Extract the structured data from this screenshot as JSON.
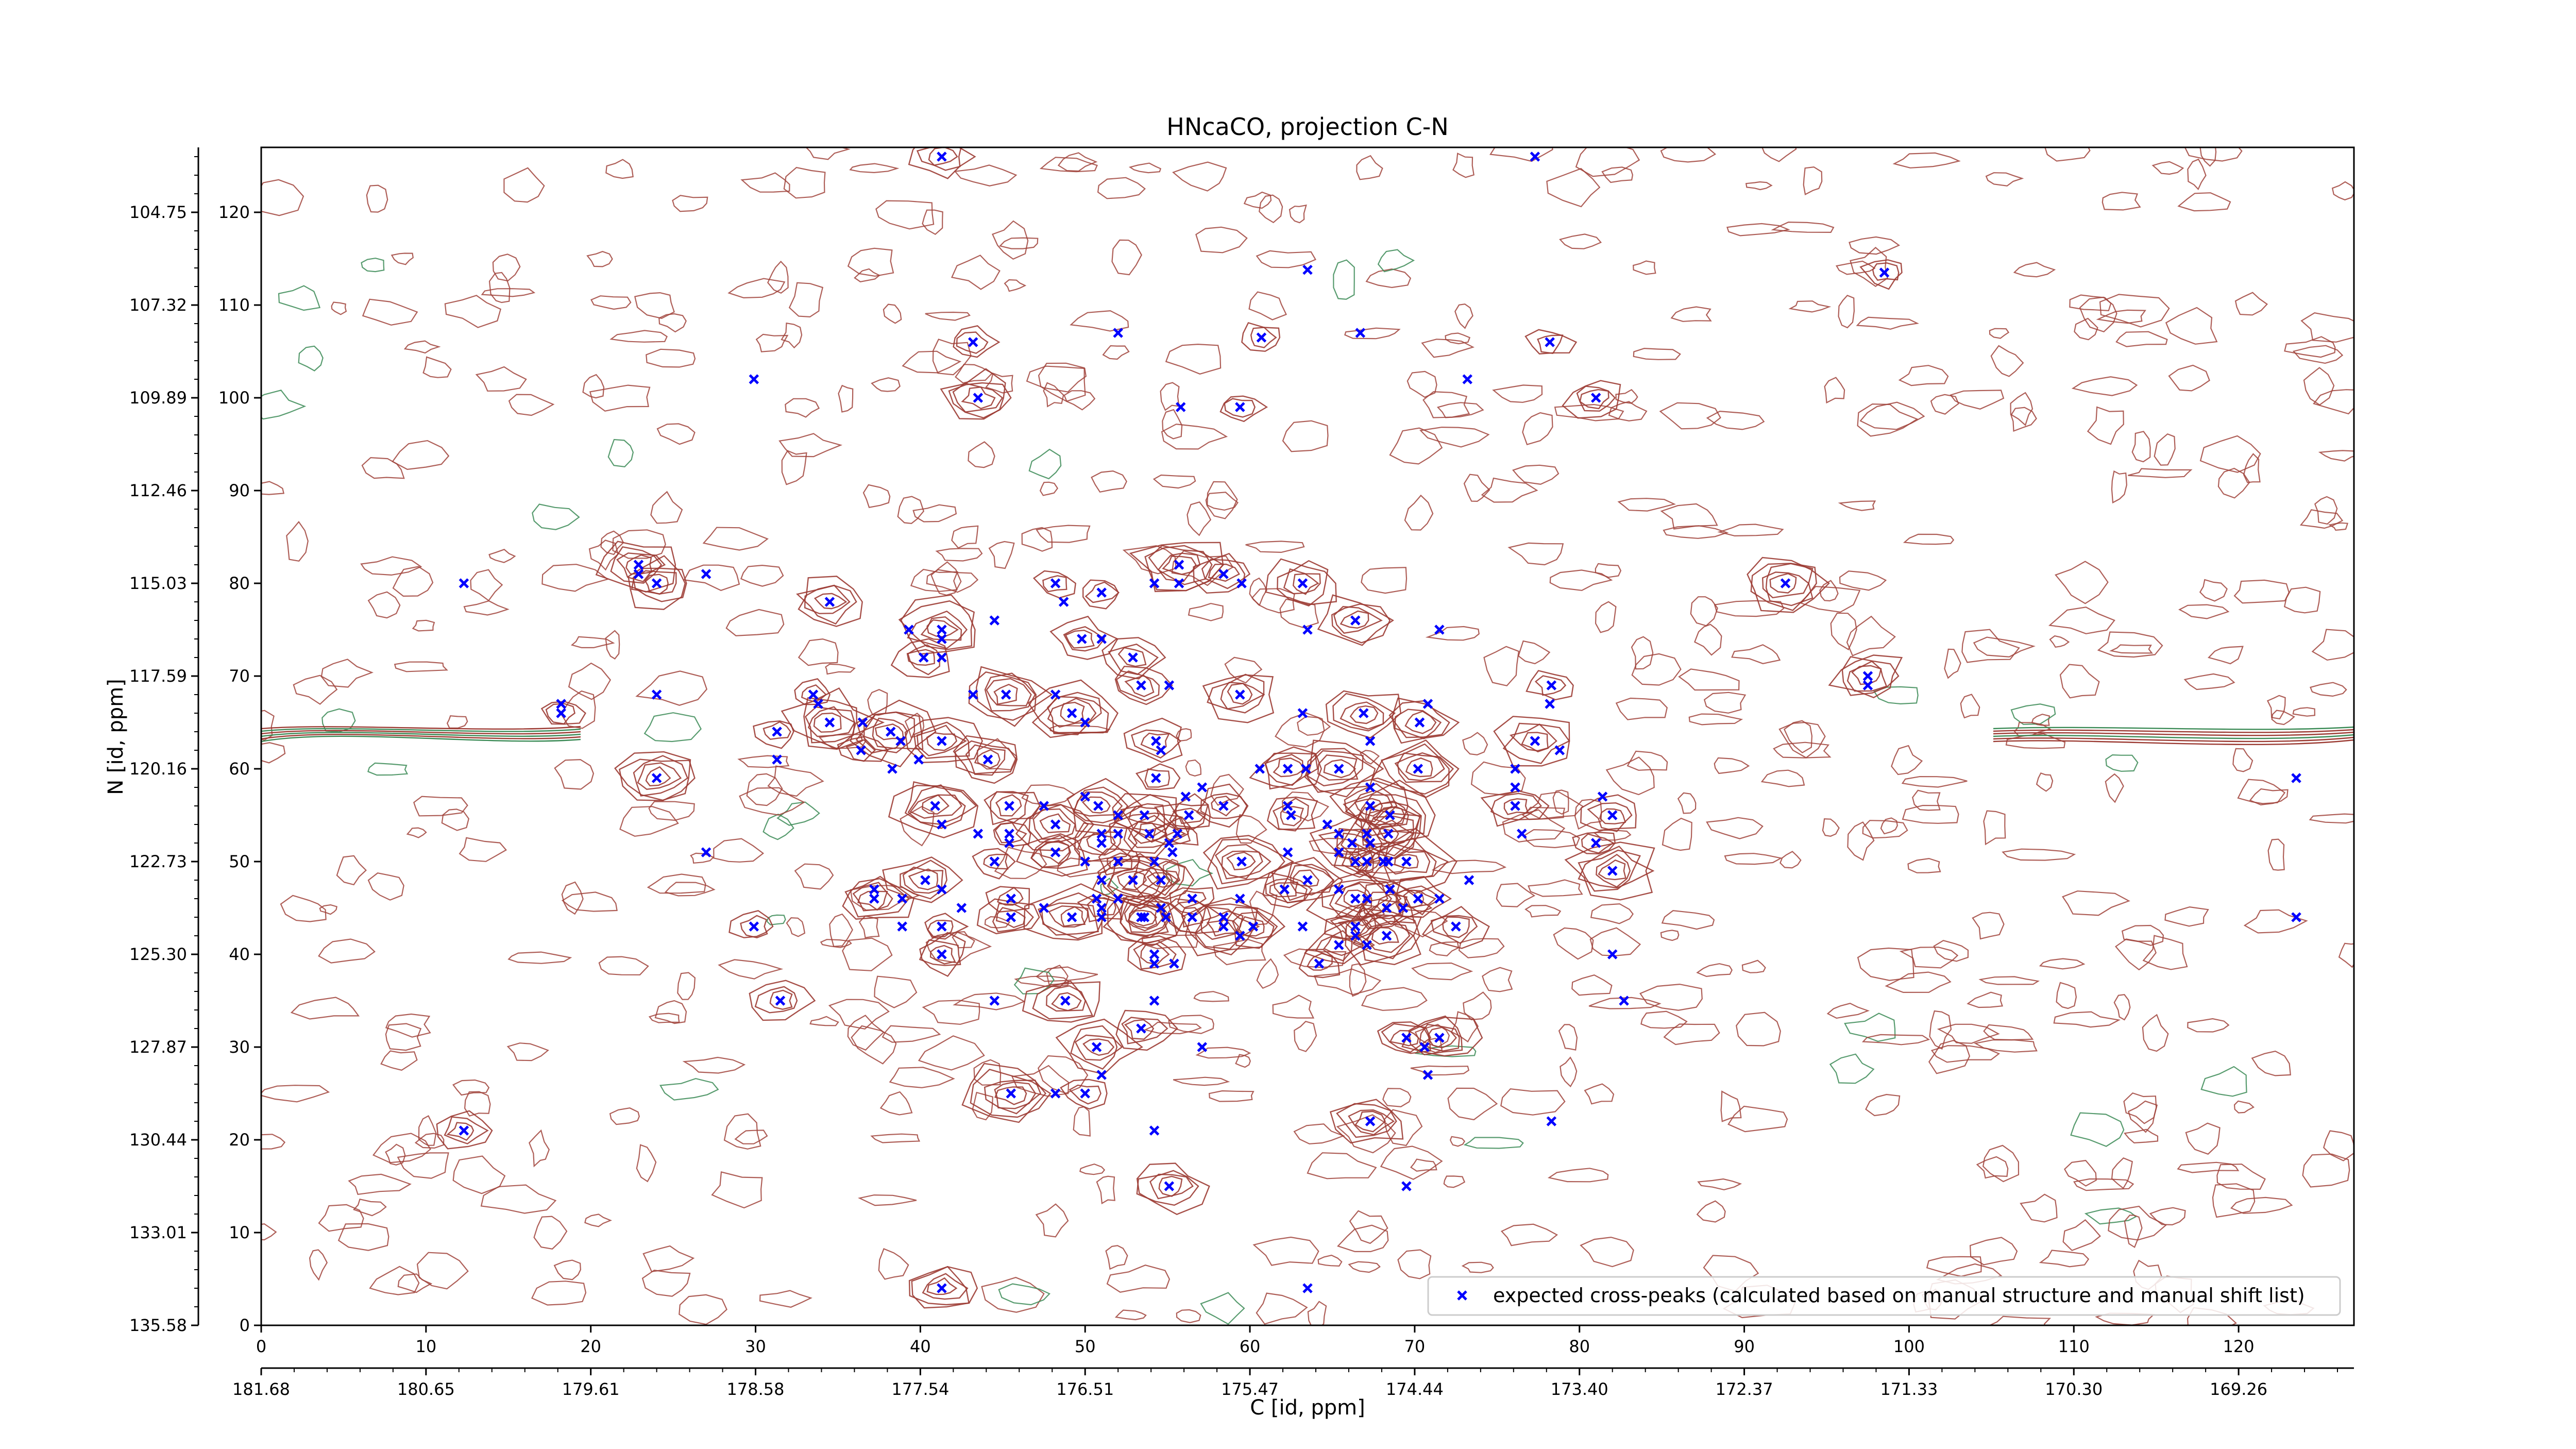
{
  "chart_data": {
    "type": "scatter",
    "title": "HNcaCO, projection C-N",
    "xlabel": "C [id, ppm]",
    "ylabel": "N [id, ppm]",
    "xlim": [
      0,
      127
    ],
    "ylim": [
      0,
      127
    ],
    "grid": false,
    "legend_position": "bottom-right",
    "x_index_ticks": [
      "0",
      "10",
      "20",
      "30",
      "40",
      "50",
      "60",
      "70",
      "80",
      "90",
      "100",
      "110",
      "120"
    ],
    "x_ppm_ticks": [
      "181.68",
      "180.65",
      "179.61",
      "178.58",
      "177.54",
      "176.51",
      "175.47",
      "174.44",
      "173.40",
      "172.37",
      "171.33",
      "170.30",
      "169.26"
    ],
    "y_index_ticks": [
      "0",
      "10",
      "20",
      "30",
      "40",
      "50",
      "60",
      "70",
      "80",
      "90",
      "100",
      "110",
      "120"
    ],
    "y_ppm_ticks": [
      "135.58",
      "133.01",
      "130.44",
      "127.87",
      "125.30",
      "122.73",
      "120.16",
      "117.59",
      "115.03",
      "112.46",
      "109.89",
      "107.32",
      "104.75"
    ],
    "series": [
      {
        "name": "expected cross-peaks (calculated based on manual structure and manual shift list)",
        "color": "#0000ff",
        "marker": "x",
        "points": [
          [
            41.3,
            126.0
          ],
          [
            77.3,
            126.0
          ],
          [
            98.5,
            113.5
          ],
          [
            63.5,
            113.8
          ],
          [
            43.2,
            106.0
          ],
          [
            52.0,
            107.0
          ],
          [
            60.7,
            106.5
          ],
          [
            66.7,
            107.0
          ],
          [
            78.2,
            106.0
          ],
          [
            29.9,
            102.0
          ],
          [
            43.5,
            100.0
          ],
          [
            55.8,
            99.0
          ],
          [
            59.4,
            99.0
          ],
          [
            73.2,
            102.0
          ],
          [
            81.0,
            100.0
          ],
          [
            12.3,
            80.0
          ],
          [
            22.9,
            82.0
          ],
          [
            22.9,
            81.0
          ],
          [
            24.0,
            80.0
          ],
          [
            27.0,
            81.0
          ],
          [
            34.5,
            78.0
          ],
          [
            44.5,
            76.0
          ],
          [
            48.2,
            80.0
          ],
          [
            48.7,
            78.0
          ],
          [
            51.0,
            79.0
          ],
          [
            54.2,
            80.0
          ],
          [
            55.7,
            82.0
          ],
          [
            55.7,
            80.0
          ],
          [
            58.4,
            81.0
          ],
          [
            59.5,
            80.0
          ],
          [
            63.2,
            80.0
          ],
          [
            63.5,
            75.0
          ],
          [
            66.4,
            76.0
          ],
          [
            71.5,
            75.0
          ],
          [
            92.5,
            80.0
          ],
          [
            39.3,
            75.0
          ],
          [
            41.3,
            75.0
          ],
          [
            41.3,
            74.0
          ],
          [
            40.2,
            72.0
          ],
          [
            41.3,
            72.0
          ],
          [
            49.8,
            74.0
          ],
          [
            51.0,
            74.0
          ],
          [
            52.9,
            72.0
          ],
          [
            18.2,
            67.0
          ],
          [
            18.2,
            66.0
          ],
          [
            24.0,
            68.0
          ],
          [
            33.5,
            68.0
          ],
          [
            33.8,
            67.0
          ],
          [
            34.5,
            65.0
          ],
          [
            36.5,
            65.0
          ],
          [
            31.3,
            64.0
          ],
          [
            31.3,
            61.0
          ],
          [
            38.2,
            64.0
          ],
          [
            38.8,
            63.0
          ],
          [
            41.3,
            63.0
          ],
          [
            43.2,
            68.0
          ],
          [
            45.2,
            68.0
          ],
          [
            48.2,
            68.0
          ],
          [
            49.2,
            66.0
          ],
          [
            50.0,
            65.0
          ],
          [
            53.4,
            69.0
          ],
          [
            55.1,
            69.0
          ],
          [
            59.4,
            68.0
          ],
          [
            63.2,
            66.0
          ],
          [
            66.9,
            66.0
          ],
          [
            67.3,
            63.0
          ],
          [
            70.3,
            65.0
          ],
          [
            70.8,
            67.0
          ],
          [
            78.3,
            69.0
          ],
          [
            78.2,
            67.0
          ],
          [
            77.3,
            63.0
          ],
          [
            78.8,
            62.0
          ],
          [
            97.5,
            70.0
          ],
          [
            97.5,
            69.0
          ],
          [
            36.4,
            62.0
          ],
          [
            38.3,
            60.0
          ],
          [
            44.1,
            61.0
          ],
          [
            39.9,
            61.0
          ],
          [
            54.3,
            59.0
          ],
          [
            54.6,
            62.0
          ],
          [
            54.3,
            63.0
          ],
          [
            60.6,
            60.0
          ],
          [
            62.3,
            60.0
          ],
          [
            63.4,
            60.0
          ],
          [
            65.4,
            60.0
          ],
          [
            67.3,
            58.0
          ],
          [
            70.2,
            60.0
          ],
          [
            76.1,
            60.0
          ],
          [
            24.0,
            59.0
          ],
          [
            123.5,
            59.0
          ],
          [
            40.9,
            56.0
          ],
          [
            41.3,
            54.0
          ],
          [
            45.4,
            56.0
          ],
          [
            47.5,
            56.0
          ],
          [
            48.2,
            54.0
          ],
          [
            50.0,
            57.0
          ],
          [
            50.8,
            56.0
          ],
          [
            52.0,
            55.0
          ],
          [
            53.6,
            55.0
          ],
          [
            56.1,
            57.0
          ],
          [
            56.3,
            55.0
          ],
          [
            57.1,
            58.0
          ],
          [
            58.4,
            56.0
          ],
          [
            62.3,
            56.0
          ],
          [
            62.5,
            55.0
          ],
          [
            64.7,
            54.0
          ],
          [
            67.3,
            56.0
          ],
          [
            67.1,
            53.0
          ],
          [
            68.5,
            55.0
          ],
          [
            76.1,
            58.0
          ],
          [
            76.1,
            56.0
          ],
          [
            81.4,
            57.0
          ],
          [
            82.0,
            55.0
          ],
          [
            43.5,
            53.0
          ],
          [
            45.4,
            53.0
          ],
          [
            45.4,
            52.0
          ],
          [
            48.2,
            51.0
          ],
          [
            51.0,
            53.0
          ],
          [
            51.0,
            52.0
          ],
          [
            52.0,
            53.0
          ],
          [
            53.9,
            53.0
          ],
          [
            55.1,
            52.0
          ],
          [
            55.6,
            53.0
          ],
          [
            65.4,
            53.0
          ],
          [
            66.2,
            52.0
          ],
          [
            67.3,
            52.0
          ],
          [
            67.1,
            50.0
          ],
          [
            68.1,
            50.0
          ],
          [
            68.4,
            53.0
          ],
          [
            76.5,
            53.0
          ],
          [
            81.0,
            52.0
          ],
          [
            27.0,
            51.0
          ],
          [
            40.3,
            48.0
          ],
          [
            41.3,
            47.0
          ],
          [
            44.5,
            50.0
          ],
          [
            50.0,
            50.0
          ],
          [
            52.0,
            50.0
          ],
          [
            51.0,
            48.0
          ],
          [
            52.9,
            48.0
          ],
          [
            54.2,
            50.0
          ],
          [
            54.6,
            48.0
          ],
          [
            55.3,
            51.0
          ],
          [
            59.5,
            50.0
          ],
          [
            62.3,
            51.0
          ],
          [
            63.5,
            48.0
          ],
          [
            65.4,
            51.0
          ],
          [
            66.4,
            50.0
          ],
          [
            68.4,
            50.0
          ],
          [
            69.5,
            50.0
          ],
          [
            73.3,
            48.0
          ],
          [
            82.0,
            49.0
          ],
          [
            37.2,
            47.0
          ],
          [
            37.2,
            46.0
          ],
          [
            38.9,
            46.0
          ],
          [
            45.5,
            46.0
          ],
          [
            47.5,
            45.0
          ],
          [
            49.2,
            44.0
          ],
          [
            50.7,
            46.0
          ],
          [
            51.0,
            45.0
          ],
          [
            52.0,
            46.0
          ],
          [
            53.4,
            44.0
          ],
          [
            54.6,
            45.0
          ],
          [
            56.5,
            46.0
          ],
          [
            59.4,
            46.0
          ],
          [
            62.1,
            47.0
          ],
          [
            65.4,
            47.0
          ],
          [
            66.4,
            46.0
          ],
          [
            67.1,
            46.0
          ],
          [
            68.3,
            45.0
          ],
          [
            68.5,
            47.0
          ],
          [
            70.2,
            46.0
          ],
          [
            71.5,
            46.0
          ],
          [
            29.9,
            43.0
          ],
          [
            38.9,
            43.0
          ],
          [
            41.3,
            43.0
          ],
          [
            42.5,
            45.0
          ],
          [
            45.5,
            44.0
          ],
          [
            51.0,
            44.0
          ],
          [
            53.6,
            44.0
          ],
          [
            54.9,
            44.0
          ],
          [
            56.5,
            44.0
          ],
          [
            58.4,
            44.0
          ],
          [
            58.4,
            43.0
          ],
          [
            59.4,
            42.0
          ],
          [
            60.2,
            43.0
          ],
          [
            63.2,
            43.0
          ],
          [
            65.4,
            41.0
          ],
          [
            66.4,
            42.0
          ],
          [
            66.4,
            43.0
          ],
          [
            67.1,
            41.0
          ],
          [
            68.3,
            42.0
          ],
          [
            69.3,
            45.0
          ],
          [
            72.5,
            43.0
          ],
          [
            123.5,
            44.0
          ],
          [
            41.3,
            40.0
          ],
          [
            54.2,
            39.0
          ],
          [
            54.2,
            40.0
          ],
          [
            55.4,
            39.0
          ],
          [
            64.2,
            39.0
          ],
          [
            82.0,
            40.0
          ],
          [
            31.5,
            35.0
          ],
          [
            44.5,
            35.0
          ],
          [
            48.8,
            35.0
          ],
          [
            54.2,
            35.0
          ],
          [
            53.4,
            32.0
          ],
          [
            82.7,
            35.0
          ],
          [
            50.7,
            30.0
          ],
          [
            51.0,
            27.0
          ],
          [
            50.0,
            25.0
          ],
          [
            57.1,
            30.0
          ],
          [
            69.5,
            31.0
          ],
          [
            70.6,
            30.0
          ],
          [
            71.5,
            31.0
          ],
          [
            70.8,
            27.0
          ],
          [
            45.5,
            25.0
          ],
          [
            48.2,
            25.0
          ],
          [
            12.3,
            21.0
          ],
          [
            54.2,
            21.0
          ],
          [
            67.3,
            22.0
          ],
          [
            78.3,
            22.0
          ],
          [
            55.1,
            15.0
          ],
          [
            69.5,
            15.0
          ],
          [
            41.3,
            4.0
          ],
          [
            63.5,
            4.0
          ]
        ]
      }
    ]
  }
}
